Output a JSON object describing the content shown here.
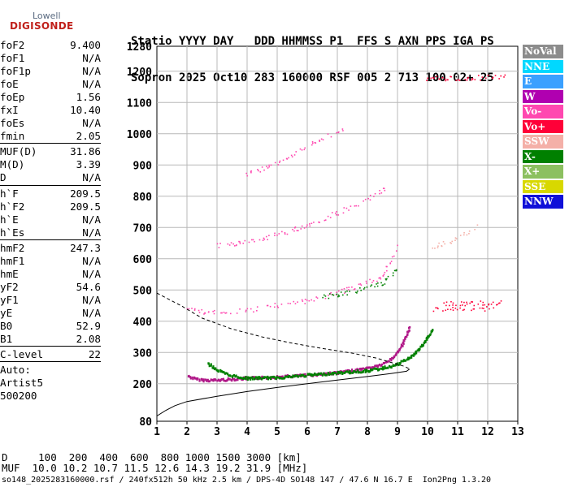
{
  "logo": {
    "line1": "Lowell",
    "line2": "DIGISONDE"
  },
  "header": {
    "line1": "Statio YYYY DAY   DDD HHMMSS P1  FFS S AXN PPS IGA PS",
    "line2": "Sopron 2025 Oct10 283 160000 RSF 005 2 713 100 02+ 25"
  },
  "params": {
    "group1": [
      {
        "name": "foF2",
        "value": "9.400"
      },
      {
        "name": "foF1",
        "value": "N/A"
      },
      {
        "name": "foF1p",
        "value": "N/A"
      },
      {
        "name": "foE",
        "value": "N/A"
      },
      {
        "name": "foEp",
        "value": "1.56"
      },
      {
        "name": "fxI",
        "value": "10.40"
      },
      {
        "name": "foEs",
        "value": "N/A"
      },
      {
        "name": "fmin",
        "value": "2.05"
      }
    ],
    "group2": [
      {
        "name": "MUF(D)",
        "value": "31.86"
      },
      {
        "name": "M(D)",
        "value": "3.39"
      },
      {
        "name": "D",
        "value": "N/A"
      }
    ],
    "group3": [
      {
        "name": "h`F",
        "value": "209.5"
      },
      {
        "name": "h`F2",
        "value": "209.5"
      },
      {
        "name": "h`E",
        "value": "N/A"
      },
      {
        "name": "h`Es",
        "value": "N/A"
      }
    ],
    "group4": [
      {
        "name": "hmF2",
        "value": "247.3"
      },
      {
        "name": "hmF1",
        "value": "N/A"
      },
      {
        "name": "hmE",
        "value": "N/A"
      },
      {
        "name": "yF2",
        "value": "54.6"
      },
      {
        "name": "yF1",
        "value": "N/A"
      },
      {
        "name": "yE",
        "value": "N/A"
      },
      {
        "name": "B0",
        "value": "52.9"
      },
      {
        "name": "B1",
        "value": "2.08"
      }
    ],
    "group5": [
      {
        "name": "C-level",
        "value": "22"
      }
    ],
    "auto": [
      "Auto:",
      "Artist5",
      "500200"
    ]
  },
  "legend": [
    {
      "label": "NoVal",
      "color": "#8c8c8c"
    },
    {
      "label": "NNE",
      "color": "#00d8ff"
    },
    {
      "label": "E",
      "color": "#3aa0ff"
    },
    {
      "label": "W",
      "color": "#b000b0"
    },
    {
      "label": "Vo-",
      "color": "#ff48b0"
    },
    {
      "label": "Vo+",
      "color": "#ff0038"
    },
    {
      "label": "SSW",
      "color": "#f4b0a8"
    },
    {
      "label": "X-",
      "color": "#008000"
    },
    {
      "label": "X+",
      "color": "#8cc060"
    },
    {
      "label": "SSE",
      "color": "#d8d800"
    },
    {
      "label": "NNW",
      "color": "#1010d8"
    }
  ],
  "footer": {
    "dist_line": "D     100  200  400  600  800 1000 1500 3000 [km]",
    "muf_line": "MUF  10.0 10.2 10.7 11.5 12.6 14.3 19.2 31.9 [MHz]",
    "info_line": "so148_2025283160000.rsf / 240fx512h 50 kHz 2.5 km / DPS-4D SO148 147 / 47.6 N 16.7 E  Ion2Png 1.3.20"
  },
  "chart_data": {
    "type": "scatter",
    "xlim": [
      1,
      13
    ],
    "ylim": [
      80,
      1280
    ],
    "x_ticks": [
      1,
      2,
      3,
      4,
      5,
      6,
      7,
      8,
      9,
      10,
      11,
      12,
      13
    ],
    "y_ticks": [
      80,
      200,
      300,
      400,
      500,
      600,
      700,
      800,
      900,
      1000,
      1100,
      1200,
      1280
    ],
    "grid": true,
    "traces": [
      {
        "name": "o_trace",
        "color": "#b01888",
        "points": [
          [
            2.05,
            225
          ],
          [
            2.3,
            215
          ],
          [
            2.6,
            212
          ],
          [
            3.0,
            212
          ],
          [
            3.5,
            215
          ],
          [
            4.0,
            218
          ],
          [
            5.0,
            222
          ],
          [
            6.0,
            228
          ],
          [
            7.0,
            236
          ],
          [
            7.5,
            242
          ],
          [
            8.0,
            250
          ],
          [
            8.5,
            262
          ],
          [
            8.8,
            280
          ],
          [
            9.0,
            300
          ],
          [
            9.2,
            330
          ],
          [
            9.4,
            380
          ]
        ]
      },
      {
        "name": "x_trace",
        "color": "#008000",
        "points": [
          [
            2.7,
            265
          ],
          [
            3.0,
            245
          ],
          [
            3.4,
            228
          ],
          [
            4.0,
            218
          ],
          [
            5.0,
            220
          ],
          [
            6.0,
            228
          ],
          [
            7.0,
            235
          ],
          [
            8.0,
            242
          ],
          [
            8.5,
            250
          ],
          [
            9.0,
            262
          ],
          [
            9.5,
            290
          ],
          [
            9.9,
            330
          ],
          [
            10.15,
            372
          ]
        ]
      },
      {
        "name": "o_multi2",
        "color": "#ff48b0",
        "points": [
          [
            2.0,
            440
          ],
          [
            2.5,
            430
          ],
          [
            3.0,
            428
          ],
          [
            3.5,
            430
          ],
          [
            4.0,
            432
          ],
          [
            5.0,
            450
          ],
          [
            6.0,
            465
          ],
          [
            7.0,
            490
          ],
          [
            8.0,
            520
          ],
          [
            8.5,
            545
          ],
          [
            8.8,
            590
          ],
          [
            9.0,
            640
          ]
        ]
      },
      {
        "name": "x_multi2",
        "color": "#008000",
        "points": [
          [
            6.5,
            475
          ],
          [
            7.0,
            484
          ],
          [
            7.5,
            492
          ],
          [
            8.0,
            505
          ],
          [
            8.5,
            520
          ],
          [
            8.8,
            540
          ],
          [
            9.0,
            570
          ]
        ]
      },
      {
        "name": "o_multi3",
        "color": "#ff48b0",
        "points": [
          [
            3.0,
            640
          ],
          [
            4.0,
            650
          ],
          [
            5.0,
            675
          ],
          [
            6.0,
            705
          ],
          [
            7.0,
            745
          ],
          [
            8.0,
            790
          ],
          [
            8.6,
            825
          ]
        ]
      },
      {
        "name": "o_multi4",
        "color": "#ff48b0",
        "points": [
          [
            4.0,
            870
          ],
          [
            4.5,
            885
          ],
          [
            5.0,
            905
          ],
          [
            5.5,
            930
          ],
          [
            6.0,
            960
          ],
          [
            6.5,
            985
          ],
          [
            7.2,
            1010
          ]
        ]
      },
      {
        "name": "oblique_ssw",
        "color": "#f4b0a8",
        "points": [
          [
            10.2,
            635
          ],
          [
            10.6,
            648
          ],
          [
            11.0,
            665
          ],
          [
            11.4,
            685
          ],
          [
            11.7,
            705
          ]
        ]
      },
      {
        "name": "vo_plus_1175",
        "color": "#ff0038",
        "points": [
          [
            10.0,
            1175
          ],
          [
            11.0,
            1176
          ],
          [
            12.0,
            1180
          ],
          [
            12.6,
            1180
          ]
        ]
      },
      {
        "name": "vo_plus_450",
        "color": "#ff0038",
        "points": [
          [
            10.5,
            455
          ],
          [
            11.5,
            457
          ],
          [
            12.5,
            458
          ]
        ]
      },
      {
        "name": "vo_plus_440",
        "color": "#ff0038",
        "points": [
          [
            10.2,
            437
          ],
          [
            11.2,
            438
          ],
          [
            12.2,
            439
          ]
        ]
      }
    ],
    "profile_dashed": [
      [
        1.0,
        490
      ],
      [
        1.8,
        450
      ],
      [
        2.5,
        410
      ],
      [
        3.5,
        375
      ],
      [
        4.5,
        350
      ],
      [
        5.5,
        330
      ],
      [
        6.5,
        313
      ],
      [
        7.5,
        298
      ],
      [
        8.3,
        282
      ],
      [
        8.9,
        265
      ],
      [
        9.25,
        255
      ],
      [
        9.4,
        247
      ]
    ],
    "profile_solid": [
      [
        1.0,
        97
      ],
      [
        1.3,
        115
      ],
      [
        1.6,
        130
      ],
      [
        2.0,
        143
      ],
      [
        3.0,
        160
      ],
      [
        4.0,
        175
      ],
      [
        5.0,
        188
      ],
      [
        6.0,
        200
      ],
      [
        7.0,
        212
      ],
      [
        8.0,
        223
      ],
      [
        8.8,
        233
      ],
      [
        9.3,
        240
      ],
      [
        9.4,
        247
      ]
    ]
  }
}
